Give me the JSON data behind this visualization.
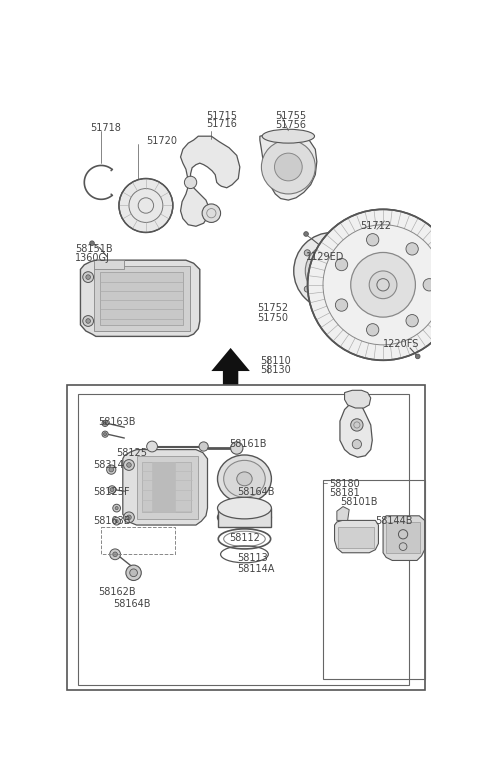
{
  "bg_color": "#ffffff",
  "lc": "#555555",
  "tc": "#444444",
  "fs": 7.0,
  "upper_labels": [
    [
      "51718",
      38,
      38,
      "left"
    ],
    [
      "51715",
      188,
      22,
      "left"
    ],
    [
      "51716",
      188,
      33,
      "left"
    ],
    [
      "51720",
      110,
      55,
      "left"
    ],
    [
      "51755",
      278,
      22,
      "left"
    ],
    [
      "51756",
      278,
      34,
      "left"
    ],
    [
      "58151B",
      18,
      195,
      "left"
    ],
    [
      "1360GJ",
      18,
      207,
      "left"
    ],
    [
      "1129ED",
      318,
      205,
      "left"
    ],
    [
      "51712",
      388,
      165,
      "left"
    ],
    [
      "51752",
      254,
      272,
      "left"
    ],
    [
      "51750",
      254,
      285,
      "left"
    ],
    [
      "1220FS",
      418,
      318,
      "left"
    ],
    [
      "58110",
      258,
      340,
      "left"
    ],
    [
      "58130",
      258,
      352,
      "left"
    ]
  ],
  "lower_labels": [
    [
      "58163B",
      48,
      420,
      "left"
    ],
    [
      "58125",
      72,
      460,
      "left"
    ],
    [
      "58314",
      42,
      476,
      "left"
    ],
    [
      "58125F",
      42,
      510,
      "left"
    ],
    [
      "58163B",
      42,
      548,
      "left"
    ],
    [
      "58161B",
      218,
      448,
      "left"
    ],
    [
      "58164B",
      228,
      510,
      "left"
    ],
    [
      "58112",
      218,
      570,
      "left"
    ],
    [
      "58113",
      228,
      596,
      "left"
    ],
    [
      "58114A",
      228,
      610,
      "left"
    ],
    [
      "58162B",
      48,
      640,
      "left"
    ],
    [
      "58164B",
      68,
      656,
      "left"
    ],
    [
      "58180",
      348,
      500,
      "left"
    ],
    [
      "58181",
      348,
      512,
      "left"
    ],
    [
      "58101B",
      362,
      524,
      "left"
    ],
    [
      "58144B",
      408,
      548,
      "left"
    ]
  ]
}
